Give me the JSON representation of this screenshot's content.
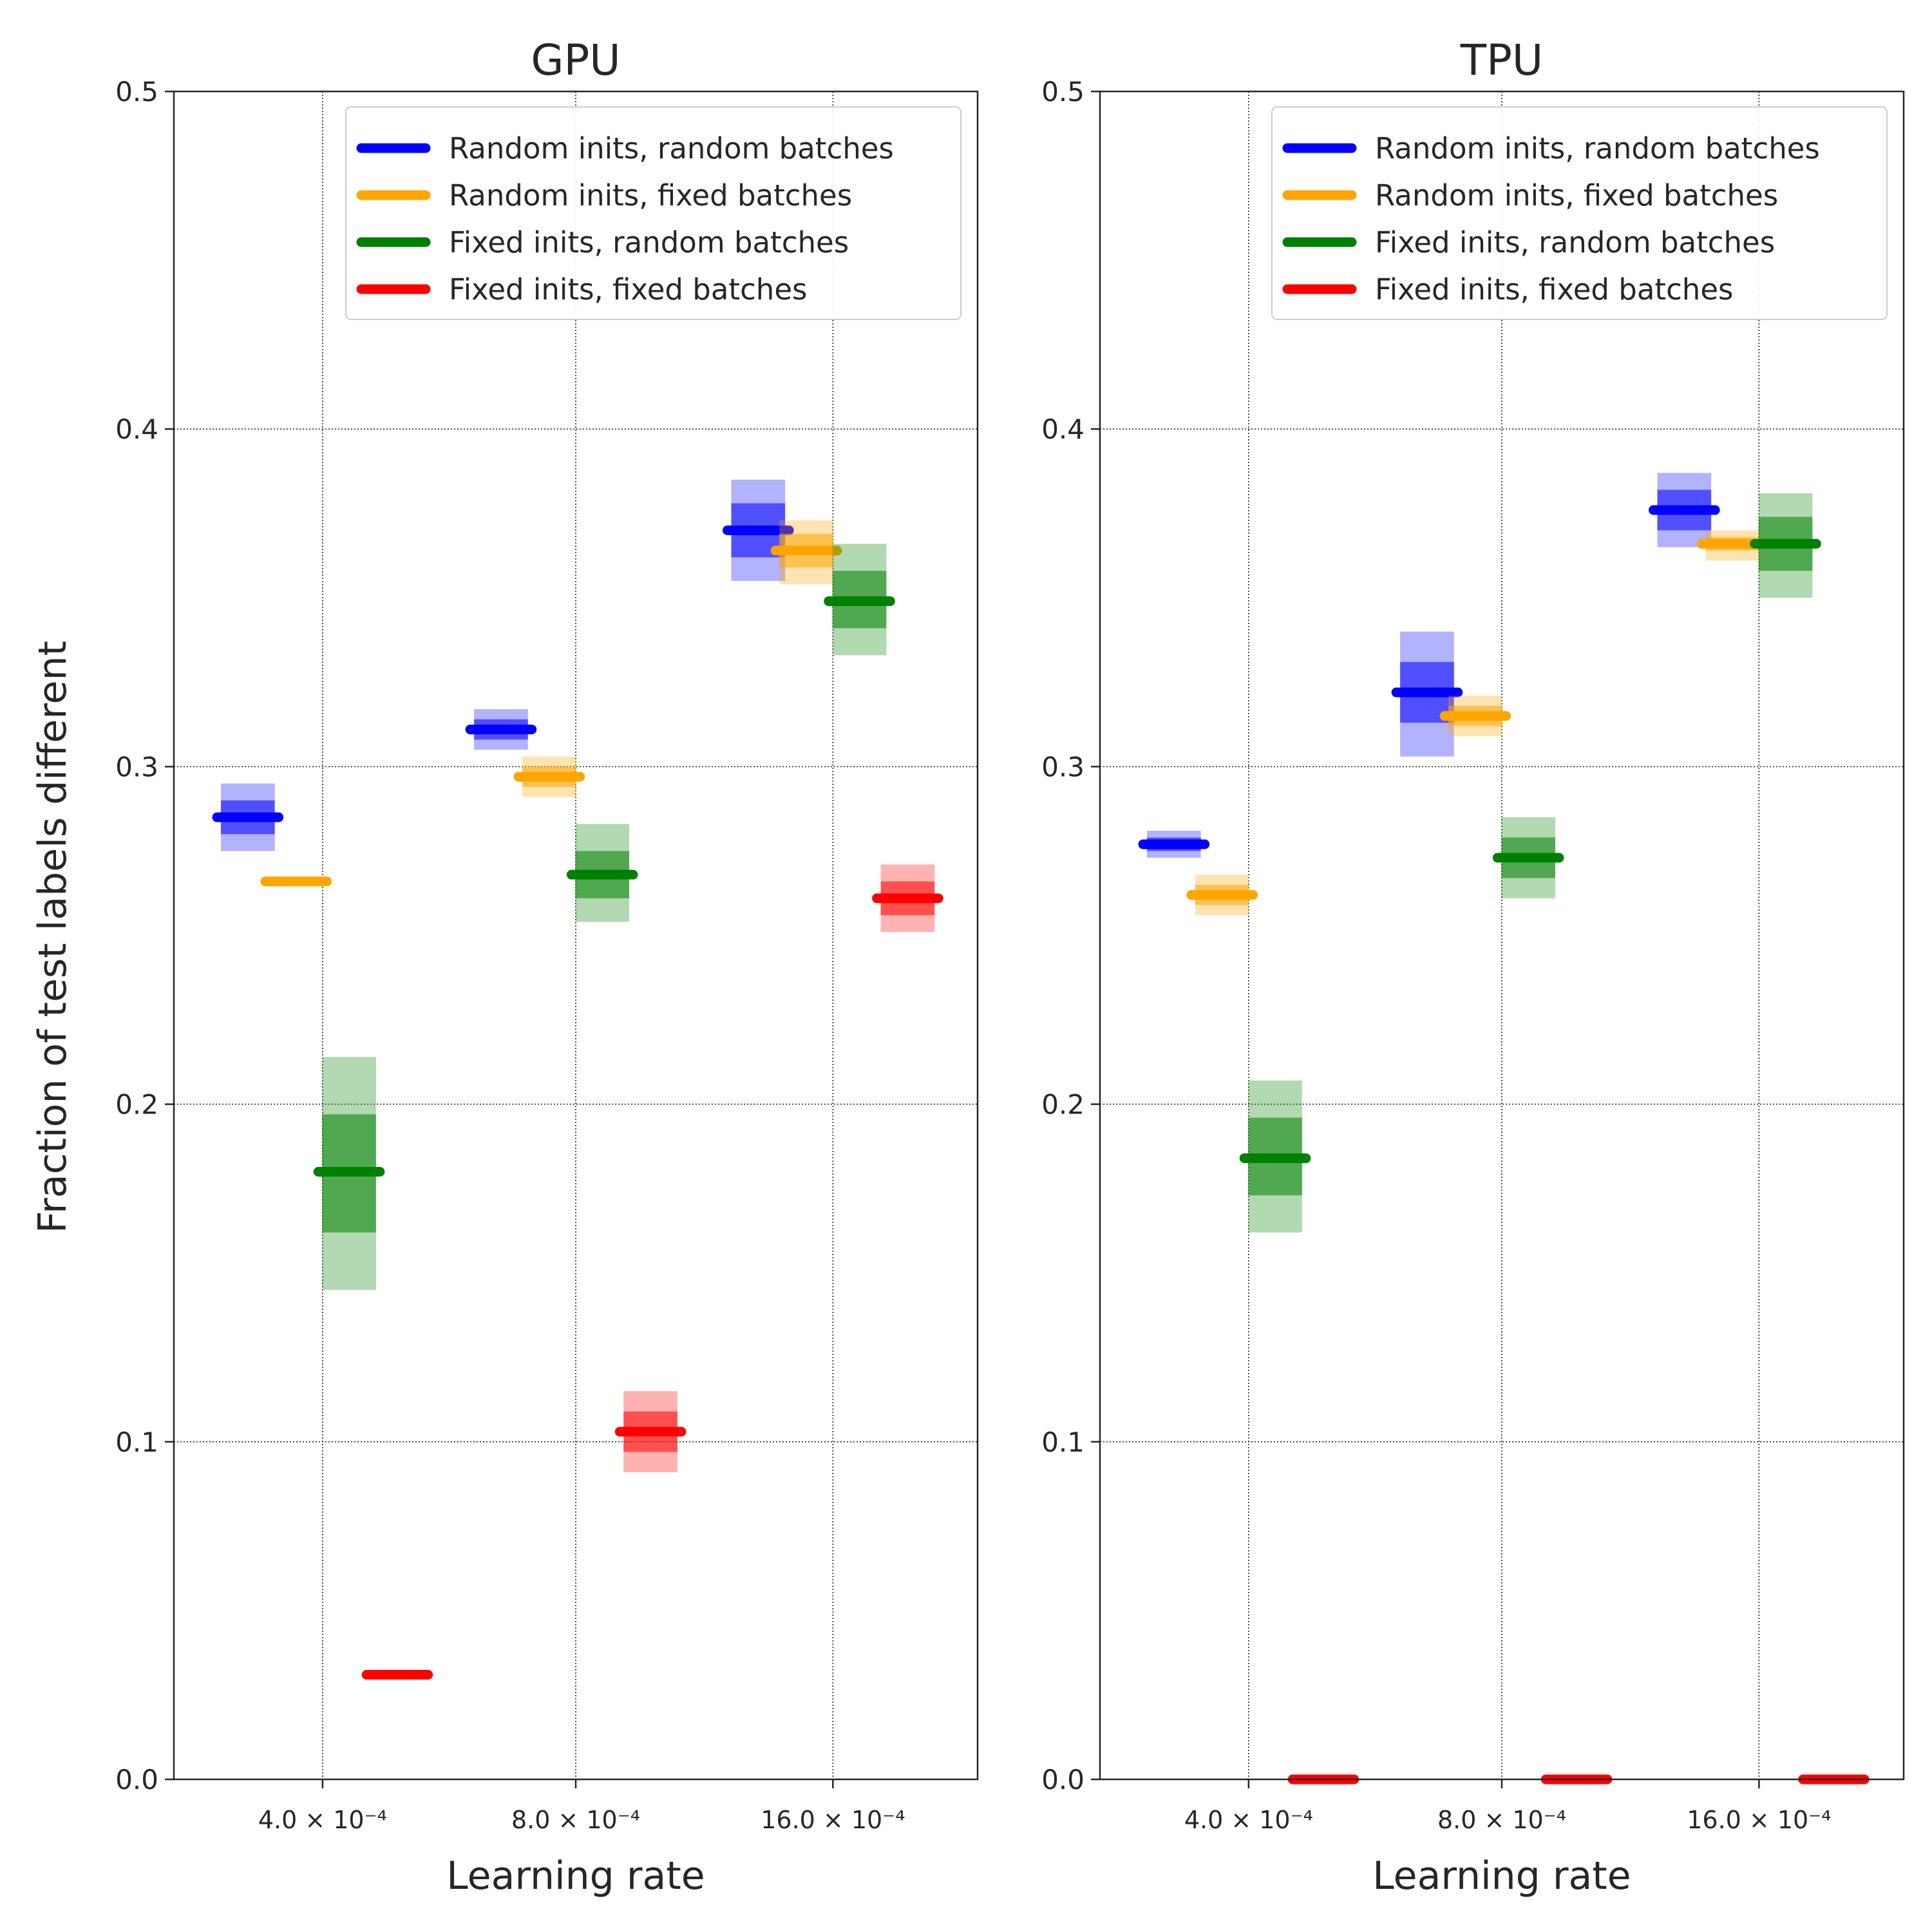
{
  "figure": {
    "ylabel": "Fraction of test labels different"
  },
  "chart_data": [
    {
      "type": "bar",
      "title": "GPU",
      "xlabel": "Learning rate",
      "ylabel": "Fraction of test labels different",
      "ylim": [
        0,
        0.5
      ],
      "yticks": [
        "0.0",
        "0.1",
        "0.2",
        "0.3",
        "0.4",
        "0.5"
      ],
      "categories": [
        "4.0 × 10⁻⁴",
        "8.0 × 10⁻⁴",
        "16.0 × 10⁻⁴"
      ],
      "legend_position": "top-right",
      "series": [
        {
          "name": "Random inits, random batches",
          "color": "#0000ff",
          "values": [
            0.285,
            0.311,
            0.37
          ],
          "inner": [
            [
              0.28,
              0.29
            ],
            [
              0.308,
              0.314
            ],
            [
              0.362,
              0.378
            ]
          ],
          "outer": [
            [
              0.275,
              0.295
            ],
            [
              0.305,
              0.317
            ],
            [
              0.355,
              0.385
            ]
          ]
        },
        {
          "name": "Random inits, fixed batches",
          "color": "#ffa500",
          "values": [
            0.266,
            0.297,
            0.364
          ],
          "inner": [
            [
              0.266,
              0.266
            ],
            [
              0.294,
              0.3
            ],
            [
              0.359,
              0.369
            ]
          ],
          "outer": [
            [
              0.266,
              0.266
            ],
            [
              0.291,
              0.303
            ],
            [
              0.354,
              0.373
            ]
          ]
        },
        {
          "name": "Fixed inits, random batches",
          "color": "#008000",
          "values": [
            0.18,
            0.268,
            0.349
          ],
          "inner": [
            [
              0.162,
              0.197
            ],
            [
              0.261,
              0.275
            ],
            [
              0.341,
              0.358
            ]
          ],
          "outer": [
            [
              0.145,
              0.214
            ],
            [
              0.254,
              0.283
            ],
            [
              0.333,
              0.366
            ]
          ]
        },
        {
          "name": "Fixed inits, fixed batches",
          "color": "#ff0000",
          "values": [
            0.031,
            0.103,
            0.261
          ],
          "inner": [
            [
              0.031,
              0.031
            ],
            [
              0.097,
              0.109
            ],
            [
              0.256,
              0.266
            ]
          ],
          "outer": [
            [
              0.031,
              0.031
            ],
            [
              0.091,
              0.115
            ],
            [
              0.251,
              0.271
            ]
          ]
        }
      ]
    },
    {
      "type": "bar",
      "title": "TPU",
      "xlabel": "Learning rate",
      "ylabel": "",
      "ylim": [
        0,
        0.5
      ],
      "yticks": [
        "0.0",
        "0.1",
        "0.2",
        "0.3",
        "0.4",
        "0.5"
      ],
      "categories": [
        "4.0 × 10⁻⁴",
        "8.0 × 10⁻⁴",
        "16.0 × 10⁻⁴"
      ],
      "legend_position": "top-right",
      "series": [
        {
          "name": "Random inits, random batches",
          "color": "#0000ff",
          "values": [
            0.277,
            0.322,
            0.376
          ],
          "inner": [
            [
              0.275,
              0.279
            ],
            [
              0.313,
              0.331
            ],
            [
              0.37,
              0.382
            ]
          ],
          "outer": [
            [
              0.273,
              0.281
            ],
            [
              0.303,
              0.34
            ],
            [
              0.365,
              0.387
            ]
          ]
        },
        {
          "name": "Random inits, fixed batches",
          "color": "#ffa500",
          "values": [
            0.262,
            0.315,
            0.366
          ],
          "inner": [
            [
              0.259,
              0.265
            ],
            [
              0.312,
              0.318
            ],
            [
              0.364,
              0.368
            ]
          ],
          "outer": [
            [
              0.256,
              0.268
            ],
            [
              0.309,
              0.321
            ],
            [
              0.361,
              0.37
            ]
          ]
        },
        {
          "name": "Fixed inits, random batches",
          "color": "#008000",
          "values": [
            0.184,
            0.273,
            0.366
          ],
          "inner": [
            [
              0.173,
              0.196
            ],
            [
              0.267,
              0.279
            ],
            [
              0.358,
              0.374
            ]
          ],
          "outer": [
            [
              0.162,
              0.207
            ],
            [
              0.261,
              0.285
            ],
            [
              0.35,
              0.381
            ]
          ]
        },
        {
          "name": "Fixed inits, fixed batches",
          "color": "#ff0000",
          "values": [
            0.0,
            0.0,
            0.0
          ],
          "inner": [
            [
              0.0,
              0.0
            ],
            [
              0.0,
              0.0
            ],
            [
              0.0,
              0.0
            ]
          ],
          "outer": [
            [
              0.0,
              0.0
            ],
            [
              0.0,
              0.0
            ],
            [
              0.0,
              0.0
            ]
          ]
        }
      ]
    }
  ]
}
